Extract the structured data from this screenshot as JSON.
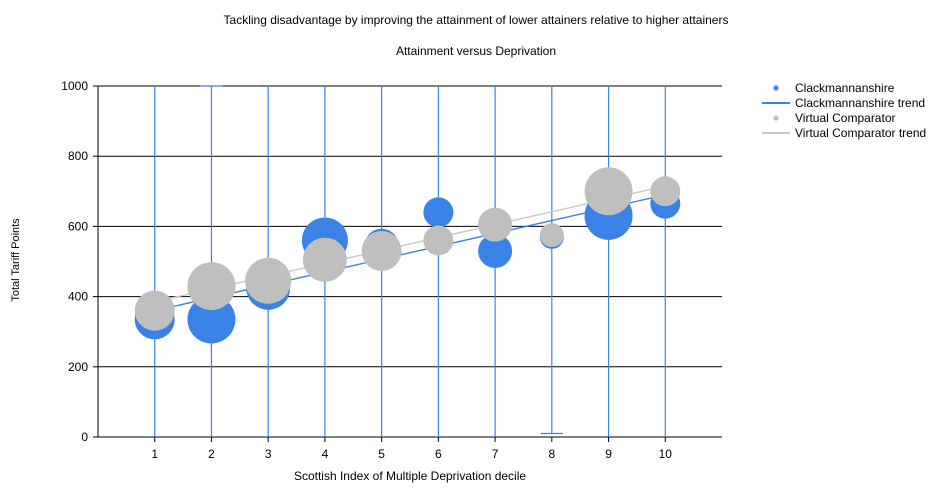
{
  "chart_data": {
    "type": "scatter",
    "title": "Tackling disadvantage by improving the attainment of lower attainers relative to higher attainers",
    "subtitle": "Attainment versus Deprivation",
    "xlabel": "Scottish Index of Multiple Deprivation decile",
    "ylabel": "Total Tariff Points",
    "xlim": [
      0,
      11
    ],
    "ylim": [
      0,
      1000
    ],
    "yticks": [
      0,
      200,
      400,
      600,
      800,
      1000
    ],
    "xticks": [
      1,
      2,
      3,
      4,
      5,
      6,
      7,
      8,
      9,
      10
    ],
    "grid": {
      "horizontal": true,
      "vertical": false
    },
    "legend_position": "top-right",
    "series": [
      {
        "name": "Clackmannanshire",
        "kind": "bubble",
        "color": "#3b82e6",
        "points": [
          {
            "x": 1,
            "y": 335,
            "size": 20
          },
          {
            "x": 2,
            "y": 335,
            "size": 24
          },
          {
            "x": 3,
            "y": 425,
            "size": 22
          },
          {
            "x": 4,
            "y": 560,
            "size": 23
          },
          {
            "x": 5,
            "y": 545,
            "size": 17
          },
          {
            "x": 6,
            "y": 640,
            "size": 15
          },
          {
            "x": 7,
            "y": 530,
            "size": 17
          },
          {
            "x": 8,
            "y": 570,
            "size": 12
          },
          {
            "x": 9,
            "y": 630,
            "size": 24
          },
          {
            "x": 10,
            "y": 665,
            "size": 15
          }
        ],
        "error_bars": [
          {
            "x": 1,
            "low": 0,
            "high": 1000
          },
          {
            "x": 2,
            "low": 0,
            "high": 1000
          },
          {
            "x": 3,
            "low": 0,
            "high": 1000
          },
          {
            "x": 4,
            "low": 0,
            "high": 1000
          },
          {
            "x": 5,
            "low": 0,
            "high": 1000
          },
          {
            "x": 6,
            "low": 0,
            "high": 1000
          },
          {
            "x": 7,
            "low": 0,
            "high": 1000
          },
          {
            "x": 8,
            "low": 10,
            "high": 1000
          },
          {
            "x": 9,
            "low": 0,
            "high": 1000
          },
          {
            "x": 10,
            "low": 0,
            "high": 1000
          }
        ]
      },
      {
        "name": "Clackmannanshire trend",
        "kind": "line",
        "color": "#3b82e6",
        "x": [
          1,
          10
        ],
        "y": [
          360,
          690
        ]
      },
      {
        "name": "Virtual Comparator",
        "kind": "bubble",
        "color": "#bfbfbf",
        "points": [
          {
            "x": 1,
            "y": 360,
            "size": 20
          },
          {
            "x": 2,
            "y": 430,
            "size": 24
          },
          {
            "x": 3,
            "y": 445,
            "size": 23
          },
          {
            "x": 4,
            "y": 505,
            "size": 22
          },
          {
            "x": 5,
            "y": 530,
            "size": 20
          },
          {
            "x": 6,
            "y": 560,
            "size": 15
          },
          {
            "x": 7,
            "y": 605,
            "size": 17
          },
          {
            "x": 8,
            "y": 575,
            "size": 12
          },
          {
            "x": 9,
            "y": 700,
            "size": 24
          },
          {
            "x": 10,
            "y": 700,
            "size": 15
          }
        ]
      },
      {
        "name": "Virtual Comparator trend",
        "kind": "line",
        "color": "#c8c8c8",
        "x": [
          1,
          10
        ],
        "y": [
          385,
          715
        ]
      }
    ]
  }
}
